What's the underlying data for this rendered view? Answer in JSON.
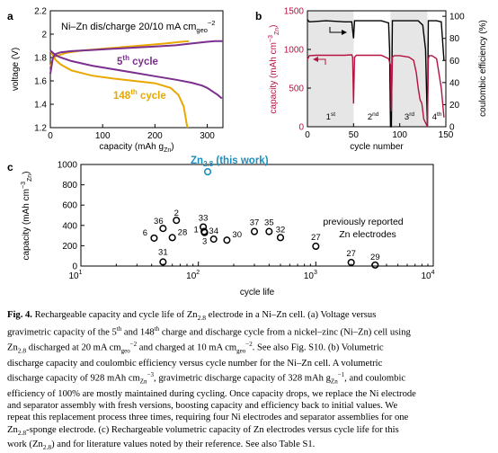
{
  "figure": {
    "panel_a": {
      "letter": "a",
      "title": "Ni–Zn dis/charge 20/10 mA cm",
      "title_sub": "geo",
      "title_sup": "−2",
      "ylabel": "voltage (V)",
      "xlabel_main": "capacity (mAh g",
      "xlabel_sub": "Zn",
      "xlabel_close": ")",
      "yticks": [
        "2.2",
        "2",
        "1.8",
        "1.6",
        "1.4",
        "1.2"
      ],
      "xticks": [
        "0",
        "100",
        "200",
        "300"
      ],
      "label_5": "5",
      "label_5_sup": "th",
      "label_5_tail": " cycle",
      "label_148": "148",
      "label_148_sup": "th",
      "label_148_tail": " cycle",
      "colors": {
        "cycle5": "#7b2f8e",
        "cycle148": "#e8a800"
      }
    },
    "panel_b": {
      "letter": "b",
      "ylabel_left": "capacity (mAh cm",
      "ylabel_left_sub": "Zn",
      "ylabel_left_sup": "−3",
      "ylabel_left_close": ")",
      "ylabel_right": "coulombic efficiency (%)",
      "xlabel": "cycle number",
      "yticks_left": [
        "1500",
        "1000",
        "500",
        "0"
      ],
      "yticks_right": [
        "100",
        "80",
        "60",
        "40",
        "20",
        "0"
      ],
      "xticks": [
        "0",
        "50",
        "100",
        "150"
      ],
      "assembly_labels": [
        {
          "num": "1",
          "sup": "st"
        },
        {
          "num": "2",
          "sup": "nd"
        },
        {
          "num": "3",
          "sup": "rd"
        },
        {
          "num": "4",
          "sup": "th"
        }
      ],
      "colors": {
        "capacity": "#b5123f",
        "efficiency": "#000000",
        "shade": "#e6e6e6"
      }
    },
    "panel_c": {
      "letter": "c",
      "ylabel": "capacity (mAh cm",
      "ylabel_sub": "Zn",
      "ylabel_sup": "−3",
      "ylabel_close": ")",
      "xlabel": "cycle life",
      "yticks": [
        "1000",
        "800",
        "600",
        "400",
        "200",
        "0"
      ],
      "this_work_main": "Zn",
      "this_work_sub": "2.8",
      "this_work_tail": " (this work)",
      "reported_line1": "previously reported",
      "reported_line2": "Zn electrodes",
      "colors": {
        "this_work": "#1a8fc0"
      }
    },
    "caption": {
      "fig_label": "Fig. 4.",
      "line1": " Rechargeable capacity and cycle life of Zn",
      "line1_sub": "2.8",
      "line1_tail": " electrode in a Ni–Zn cell. (a) Voltage versus",
      "line2": "gravimetric capacity of the 5",
      "line2_sup1": "th",
      "line2_mid": " and 148",
      "line2_sup2": "th",
      "line2_tail": " charge and discharge cycle from a nickel–zinc (Ni–Zn) cell using",
      "line3a": "Zn",
      "line3_sub": "2.8",
      "line3b": " discharged at 20 mA cm",
      "line3_sub2": "geo",
      "line3_sup": "−2",
      "line3c": " and charged at 10 mA cm",
      "line3_sub3": "geo",
      "line3_sup2": "−2",
      "line3d": ". See also Fig. S10. (b) Volumetric",
      "line4": "discharge capacity and coulombic efficiency versus cycle number for the Ni–Zn cell. A volumetric",
      "line5a": "discharge capacity of 928 mAh cm",
      "line5_sub": "Zn",
      "line5_sup": "−3",
      "line5b": ", gravimetric discharge capacity of 328 mAh g",
      "line5_sub2": "Zn",
      "line5_sup2": "−1",
      "line5c": ", and coulombic",
      "line6": "efficiency of 100% are mostly maintained during cycling. Once capacity drops, we replace the Ni electrode",
      "line7": "and separator assembly with fresh versions, boosting capacity and efficiency back to initial values. We",
      "line8": "repeat this replacement process three times, requiring four Ni electrodes and separator assemblies for one",
      "line9a": "Zn",
      "line9_sub": "2.8",
      "line9b": "-sponge electrode. (c) Rechargeable volumetric capacity of Zn electrodes versus cycle life for this",
      "line10a": "work (Zn",
      "line10_sub": "2.8",
      "line10b": ") and for literature values noted by their reference. See also Table S1."
    }
  },
  "chart_data": [
    {
      "type": "line",
      "panel": "a",
      "xlabel": "capacity (mAh gZn)",
      "ylabel": "voltage (V)",
      "xlim": [
        0,
        330
      ],
      "ylim": [
        1.2,
        2.2
      ],
      "series": [
        {
          "name": "5th cycle charge",
          "x": [
            0,
            5,
            10,
            20,
            40,
            80,
            120,
            160,
            200,
            240,
            270,
            290,
            300,
            315,
            330
          ],
          "y": [
            1.66,
            1.8,
            1.83,
            1.845,
            1.855,
            1.865,
            1.875,
            1.885,
            1.895,
            1.905,
            1.92,
            1.93,
            1.935,
            1.94,
            1.94
          ]
        },
        {
          "name": "5th cycle discharge",
          "x": [
            0,
            5,
            10,
            20,
            40,
            80,
            120,
            160,
            200,
            240,
            270,
            290,
            300,
            310,
            320,
            328
          ],
          "y": [
            1.86,
            1.84,
            1.82,
            1.8,
            1.77,
            1.73,
            1.7,
            1.67,
            1.64,
            1.61,
            1.585,
            1.56,
            1.54,
            1.51,
            1.48,
            1.45
          ]
        },
        {
          "name": "148th cycle charge",
          "x": [
            0,
            5,
            10,
            30,
            60,
            100,
            140,
            180,
            220,
            250,
            265
          ],
          "y": [
            1.72,
            1.79,
            1.81,
            1.84,
            1.86,
            1.875,
            1.89,
            1.905,
            1.92,
            1.935,
            1.94
          ]
        },
        {
          "name": "148th cycle discharge",
          "x": [
            0,
            5,
            10,
            20,
            40,
            80,
            120,
            160,
            200,
            230,
            245,
            255,
            262
          ],
          "y": [
            1.86,
            1.82,
            1.78,
            1.74,
            1.69,
            1.645,
            1.62,
            1.6,
            1.58,
            1.54,
            1.48,
            1.38,
            1.2
          ]
        }
      ]
    },
    {
      "type": "line",
      "panel": "b",
      "xlabel": "cycle number",
      "ylabel": "capacity (mAh cmZn-3)",
      "y2label": "coulombic efficiency (%)",
      "xlim": [
        0,
        150
      ],
      "ylim": [
        0,
        1500
      ],
      "y2lim": [
        0,
        105
      ],
      "shaded_ranges": [
        [
          0,
          50
        ],
        [
          90,
          130
        ]
      ],
      "series": [
        {
          "name": "capacity",
          "axis": "left",
          "x": [
            0,
            2,
            10,
            20,
            30,
            40,
            48,
            49,
            50,
            51,
            53,
            60,
            70,
            80,
            88,
            90,
            91,
            92,
            94,
            100,
            110,
            115,
            118,
            120,
            122,
            124,
            126,
            130,
            131,
            132,
            135,
            140,
            145,
            148
          ],
          "y": [
            870,
            920,
            925,
            925,
            925,
            925,
            930,
            900,
            300,
            900,
            925,
            925,
            925,
            925,
            880,
            800,
            200,
            900,
            920,
            920,
            900,
            860,
            700,
            500,
            350,
            300,
            100,
            0,
            880,
            920,
            920,
            880,
            500,
            120
          ]
        },
        {
          "name": "coulombic efficiency",
          "axis": "right",
          "x": [
            0,
            2,
            20,
            40,
            48,
            50,
            51,
            60,
            80,
            88,
            89,
            90,
            91,
            92,
            100,
            120,
            125,
            128,
            130,
            131,
            132,
            140,
            145,
            148
          ],
          "y": [
            97,
            95,
            96,
            95,
            95,
            80,
            96,
            96,
            96,
            94,
            70,
            0,
            0,
            96,
            96,
            96,
            92,
            70,
            0,
            96,
            96,
            96,
            95,
            60
          ]
        }
      ]
    },
    {
      "type": "scatter",
      "panel": "c",
      "xlabel": "cycle life",
      "ylabel": "capacity (mAh cmZn-3)",
      "x_scale": "log",
      "xlim": [
        10,
        10000
      ],
      "ylim": [
        0,
        1000
      ],
      "x_ticks": [
        "10^1",
        "10^2",
        "10^3",
        "10^4"
      ],
      "this_work": {
        "label": "Zn2.8 (this work)",
        "x": 120,
        "y": 928
      },
      "points": [
        {
          "label": "2",
          "x": 65,
          "y": 450
        },
        {
          "label": "36",
          "x": 50,
          "y": 370
        },
        {
          "label": "6",
          "x": 42,
          "y": 275
        },
        {
          "label": "28",
          "x": 60,
          "y": 280
        },
        {
          "label": "33",
          "x": 110,
          "y": 385
        },
        {
          "label": "1",
          "x": 112,
          "y": 340
        },
        {
          "label": "3",
          "x": 113,
          "y": 330
        },
        {
          "label": "34",
          "x": 135,
          "y": 265
        },
        {
          "label": "30",
          "x": 175,
          "y": 255
        },
        {
          "label": "37",
          "x": 300,
          "y": 340
        },
        {
          "label": "35",
          "x": 400,
          "y": 340
        },
        {
          "label": "32",
          "x": 500,
          "y": 280
        },
        {
          "label": "27",
          "x": 1000,
          "y": 195
        },
        {
          "label": "31",
          "x": 50,
          "y": 40
        },
        {
          "label": "27",
          "x": 2000,
          "y": 35
        },
        {
          "label": "29",
          "x": 3200,
          "y": 10
        }
      ]
    }
  ]
}
